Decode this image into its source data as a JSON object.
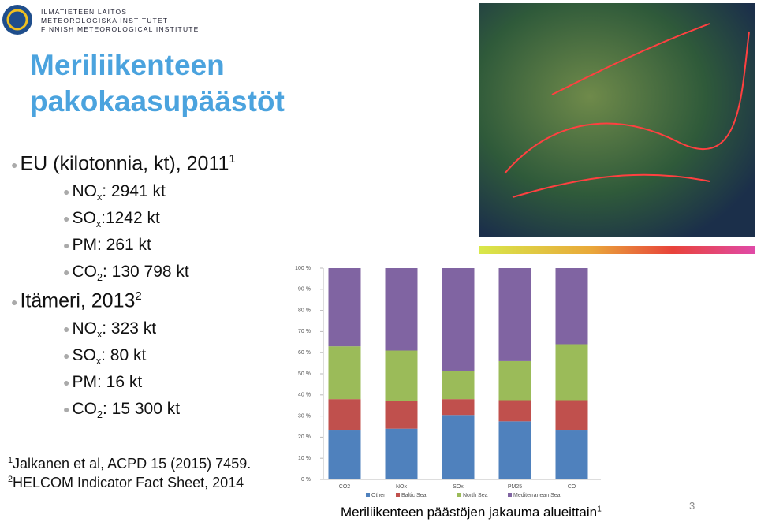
{
  "logo": {
    "lines": [
      "ILMATIETEEN LAITOS",
      "METEOROLOGISKA INSTITUTET",
      "FINNISH METEOROLOGICAL INSTITUTE"
    ]
  },
  "header": {
    "title_lines": [
      "Meriliikenteen",
      "pakokaasupäästöt"
    ]
  },
  "bullets": [
    {
      "text": "EU (kilotonnia, kt), 2011",
      "sup": "1",
      "items": [
        {
          "main": "NO",
          "sub": "x",
          "rest": ": 2941 kt"
        },
        {
          "main": "SO",
          "sub": "x",
          "rest": ":1242 kt"
        },
        {
          "main": "PM: 261 kt"
        },
        {
          "main": "CO",
          "sub": "2",
          "rest": ": 130 798 kt"
        }
      ]
    },
    {
      "text": "Itämeri, 2013",
      "sup": "2",
      "items": [
        {
          "main": "NO",
          "sub": "x",
          "rest": ": 323 kt"
        },
        {
          "main": "SO",
          "sub": "x",
          "rest": ": 80 kt"
        },
        {
          "main": "PM: 16 kt"
        },
        {
          "main": "CO",
          "sub": "2",
          "rest": ": 15 300 kt"
        }
      ]
    }
  ],
  "footnotes": [
    {
      "sup": "1",
      "text": "Jalkanen et al, ACPD 15 (2015) 7459."
    },
    {
      "sup": "2",
      "text": "HELCOM Indicator Fact Sheet, 2014"
    }
  ],
  "caption": {
    "text": "Meriliikenteen päästöjen jakauma alueittain",
    "sup": "1"
  },
  "page_number": "3",
  "chart_data": {
    "type": "stacked-bar",
    "categories": [
      "CO2",
      "NOx",
      "SOx",
      "PM25",
      "CO"
    ],
    "series": [
      {
        "name": "Other",
        "color": "#4f81bd",
        "values": [
          23.5,
          24,
          30.5,
          27.5,
          23.5
        ]
      },
      {
        "name": "Baltic Sea",
        "color": "#c0504d",
        "values": [
          14.5,
          13,
          7.5,
          10,
          14
        ]
      },
      {
        "name": "North Sea",
        "color": "#9bbb59",
        "values": [
          25,
          24,
          13.5,
          18.5,
          26.5
        ]
      },
      {
        "name": "Mediterranean Sea",
        "color": "#8064a2",
        "values": [
          37,
          39,
          48.5,
          44,
          36
        ]
      }
    ],
    "ylim": [
      0,
      100
    ],
    "yticks": [
      {
        "value": 0,
        "label": "0 %"
      },
      {
        "value": 10,
        "label": "10 %"
      },
      {
        "value": 20,
        "label": "20 %"
      },
      {
        "value": 30,
        "label": "30 %"
      },
      {
        "value": 40,
        "label": "40 %"
      },
      {
        "value": 50,
        "label": "50 %"
      },
      {
        "value": 60,
        "label": "60 %"
      },
      {
        "value": 70,
        "label": "70 %"
      },
      {
        "value": 80,
        "label": "80 %"
      },
      {
        "value": 90,
        "label": "90 %"
      },
      {
        "value": 100,
        "label": "100 %"
      }
    ]
  }
}
